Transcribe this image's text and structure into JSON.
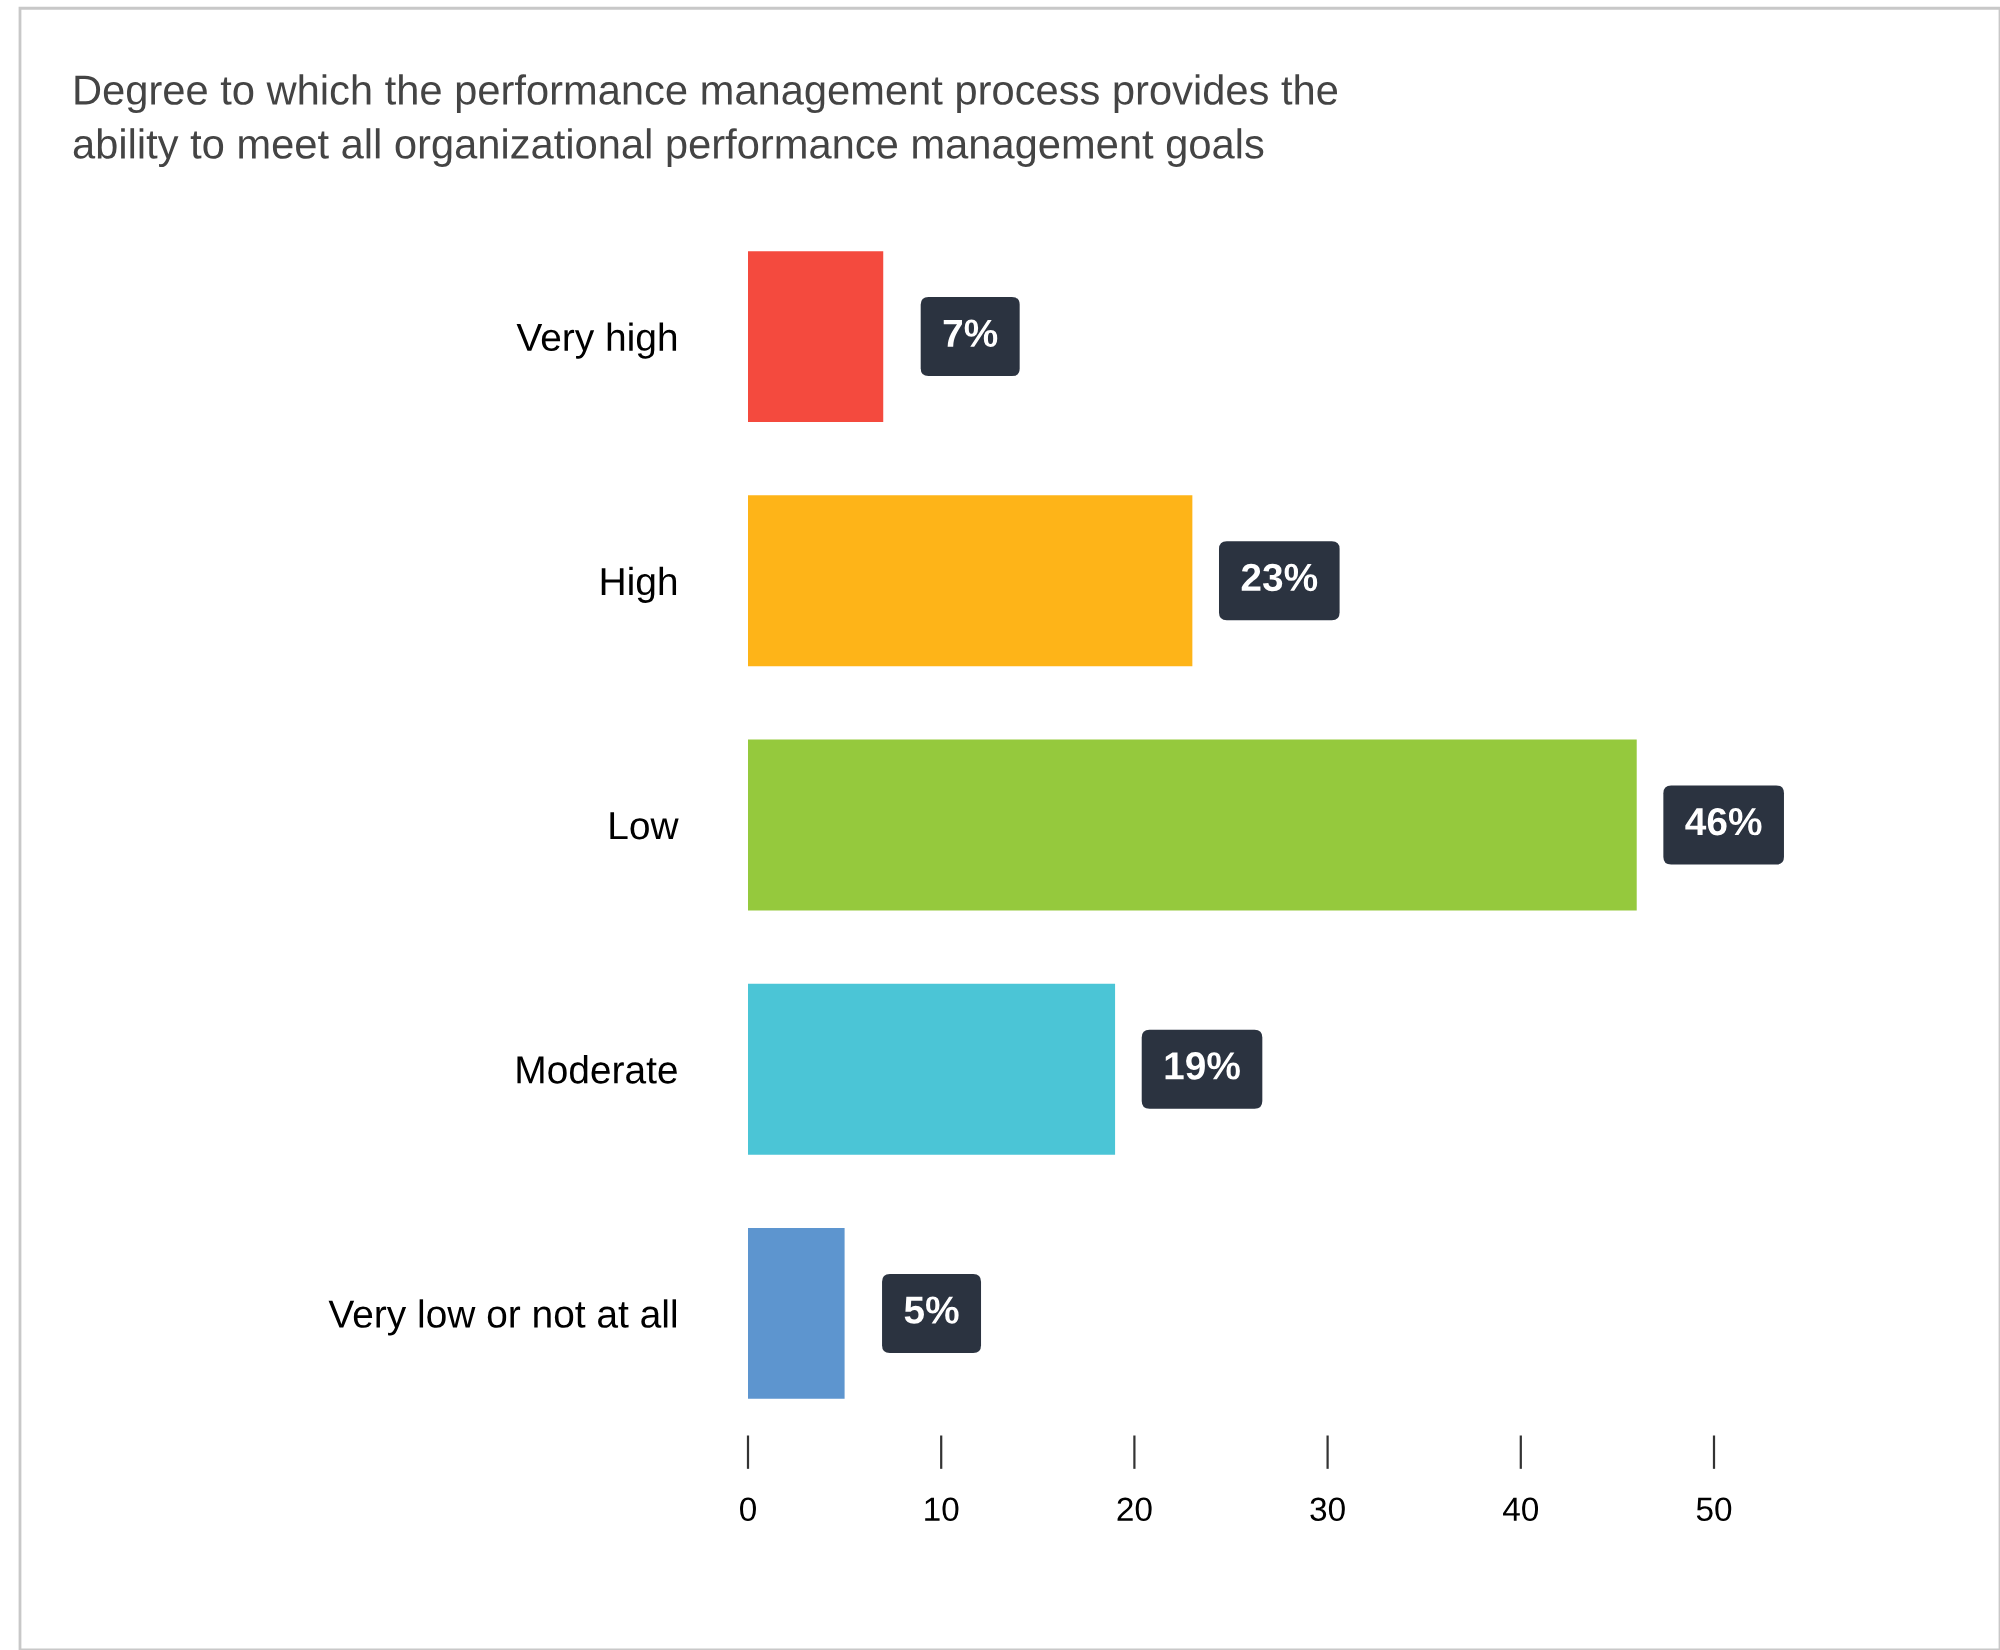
{
  "chart_data": {
    "type": "bar",
    "orientation": "horizontal",
    "title": "Degree to which the performance management process provides the\nability to meet all organizational performance management goals",
    "categories": [
      "Very high",
      "High",
      "Low",
      "Moderate",
      "Very low or not at all"
    ],
    "values": [
      7,
      23,
      46,
      19,
      5
    ],
    "colors": [
      "#f44a3e",
      "#feb418",
      "#95c93d",
      "#4bc5d6",
      "#5d95cf"
    ],
    "value_labels": [
      "7%",
      "23%",
      "46%",
      "19%",
      "5%"
    ],
    "xlim": [
      0,
      50
    ],
    "xticks": [
      0,
      10,
      20,
      30,
      40,
      50
    ],
    "grid": false,
    "legend": false
  }
}
